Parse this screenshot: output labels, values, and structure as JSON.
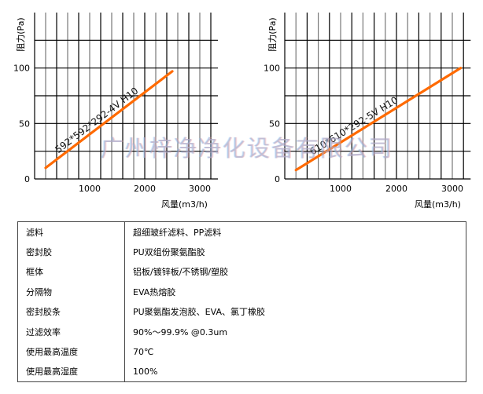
{
  "chart_data": [
    {
      "type": "line",
      "ylabel": "阻力(Pa)",
      "xlabel": "风量(m3/h)",
      "xlim": [
        0,
        3300
      ],
      "ylim": [
        0,
        150
      ],
      "xticks": [
        "1000",
        "2000",
        "3000"
      ],
      "yticks": [
        "0",
        "50",
        "100"
      ],
      "grid": true,
      "series": [
        {
          "name": "592*592*292-4V  H10",
          "x": [
            200,
            2500
          ],
          "y": [
            10,
            97
          ],
          "color": "#ff6a00"
        }
      ]
    },
    {
      "type": "line",
      "ylabel": "阻力(Pa)",
      "xlabel": "风量(m3/h)",
      "xlim": [
        0,
        3300
      ],
      "ylim": [
        0,
        150
      ],
      "xticks": [
        "1000",
        "2000",
        "3000"
      ],
      "yticks": [
        "0",
        "50",
        "100"
      ],
      "grid": true,
      "series": [
        {
          "name": "610*610*292-5V  H10",
          "x": [
            200,
            3150
          ],
          "y": [
            8,
            100
          ],
          "color": "#ff6a00"
        }
      ]
    }
  ],
  "watermark": "广州梓净净化设备有限公司",
  "specs": [
    {
      "k": "滤料",
      "v": "超细玻纤滤料、PP滤料"
    },
    {
      "k": "密封胶",
      "v": "PU双组份聚氨酯胶"
    },
    {
      "k": "框体",
      "v": "铝板/镀锌板/不锈钢/塑胶"
    },
    {
      "k": "分隔物",
      "v": "EVA热熔胶"
    },
    {
      "k": "密封胶条",
      "v": "PU聚氨酯发泡胶、EVA、氯丁橡胶"
    },
    {
      "k": "过滤效率",
      "v": "90%～99.9% @0.3um"
    },
    {
      "k": "使用最高温度",
      "v": "70℃"
    },
    {
      "k": "使用最高湿度",
      "v": "100%"
    }
  ]
}
